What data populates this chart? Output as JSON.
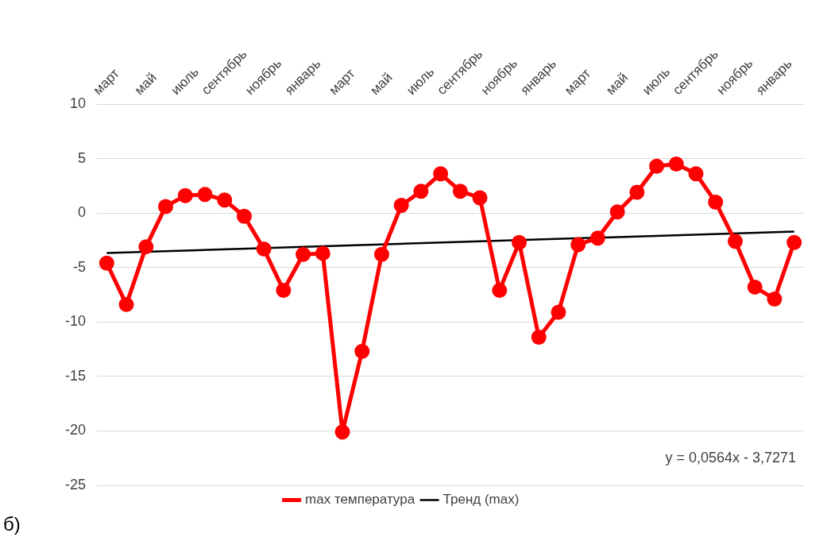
{
  "chart_data": {
    "type": "line",
    "categories": [
      "март",
      null,
      "май",
      null,
      "июль",
      null,
      "сентябрь",
      null,
      "ноябрь",
      null,
      "январь",
      null,
      "март",
      null,
      "май",
      null,
      "июль",
      null,
      "сентябрь",
      null,
      "ноябрь",
      null,
      "январь",
      null,
      "март",
      null,
      "май",
      null,
      "июль",
      null,
      "сентябрь",
      null,
      "ноябрь",
      null,
      "январь",
      null
    ],
    "series": [
      {
        "name": "max температура",
        "color": "#ff0000",
        "marker": "circle",
        "values": [
          -4.6,
          -8.4,
          -3.1,
          0.6,
          1.6,
          1.7,
          1.2,
          -0.3,
          -3.3,
          -7.1,
          -3.8,
          -3.7,
          -20.1,
          -12.7,
          -3.8,
          0.7,
          2.0,
          3.6,
          2.0,
          1.4,
          -7.1,
          -2.7,
          -11.4,
          -9.1,
          -2.9,
          -2.3,
          0.1,
          1.9,
          4.3,
          4.5,
          3.6,
          1.0,
          -2.6,
          -6.8,
          -7.9,
          -2.7
        ]
      },
      {
        "name": "Тренд (max)",
        "color": "#000000",
        "marker": "none",
        "values": [
          -3.67,
          null,
          null,
          null,
          null,
          null,
          null,
          null,
          null,
          null,
          null,
          null,
          null,
          null,
          null,
          null,
          null,
          null,
          null,
          null,
          null,
          null,
          null,
          null,
          null,
          null,
          null,
          null,
          null,
          null,
          null,
          null,
          null,
          null,
          null,
          -1.7
        ]
      }
    ],
    "ylim": [
      -25,
      10
    ],
    "yticks": [
      -25,
      -20,
      -15,
      -10,
      -5,
      0,
      5,
      10
    ],
    "grid": "y",
    "legend": "bottom",
    "annotations": [
      "y = 0,0564x - 3,7271",
      "б)"
    ]
  }
}
